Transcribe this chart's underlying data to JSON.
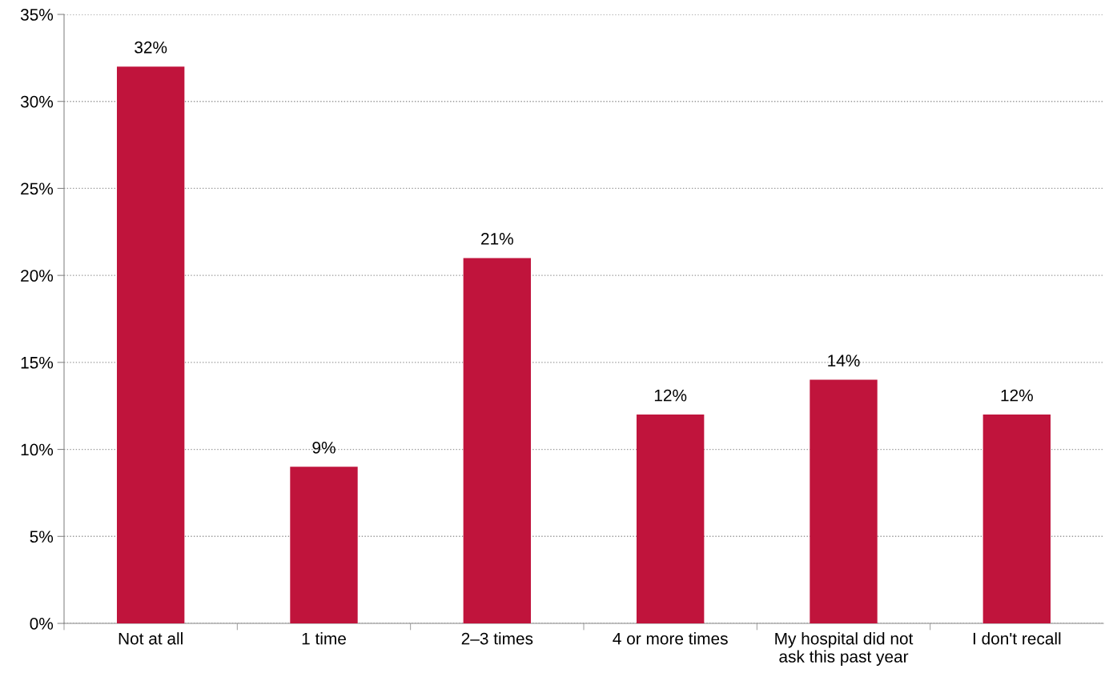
{
  "chart_data": {
    "type": "bar",
    "categories": [
      "Not at all",
      "1 time",
      "2–3 times",
      "4 or more times",
      "My hospital did not\nask this past year",
      "I don't recall"
    ],
    "values": [
      32,
      9,
      21,
      12,
      14,
      12
    ],
    "value_labels": [
      "32%",
      "9%",
      "21%",
      "12%",
      "14%",
      "12%"
    ],
    "color": "#c0143c",
    "ylim": [
      0,
      35
    ],
    "yticks": [
      {
        "value": 0,
        "label": "0%"
      },
      {
        "value": 5,
        "label": "5%"
      },
      {
        "value": 10,
        "label": "10%"
      },
      {
        "value": 15,
        "label": "15%"
      },
      {
        "value": 20,
        "label": "20%"
      },
      {
        "value": 25,
        "label": "25%"
      },
      {
        "value": 30,
        "label": "30%"
      },
      {
        "value": 35,
        "label": "35%"
      }
    ],
    "grid": "y"
  }
}
